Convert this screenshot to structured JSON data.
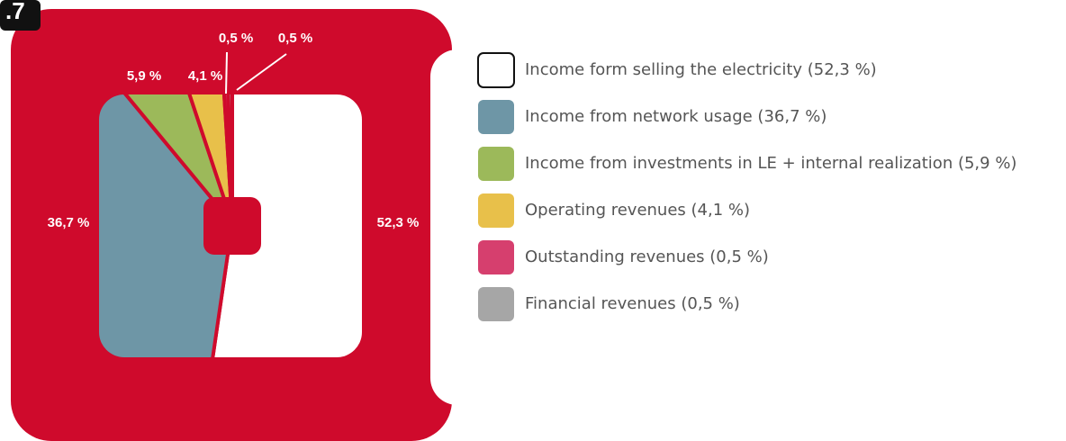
{
  "badge": ".7",
  "chart_data": {
    "type": "pie",
    "categories": [
      "Income form selling the electricity (52,3 %)",
      "Income from network usage (36,7 %)",
      "Income from investments in LE + internal realization (5,9 %)",
      "Operating revenues (4,1 %)",
      "Outstanding revenues (0,5 %)",
      "Financial revenues (0,5 %)"
    ],
    "values": [
      52.3,
      36.7,
      5.9,
      4.1,
      0.5,
      0.5
    ],
    "value_labels": [
      "52,3 %",
      "36,7 %",
      "5,9 %",
      "4,1 %",
      "0,5 %",
      "0,5 %"
    ],
    "colors": [
      "#ffffff",
      "#6e96a6",
      "#9cb95a",
      "#e8c04a",
      "#d63f6e",
      "#a6a6a6"
    ]
  }
}
